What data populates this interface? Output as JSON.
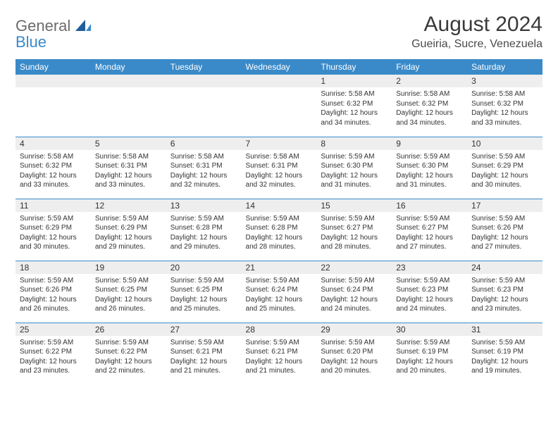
{
  "logo": {
    "word1": "General",
    "word2": "Blue"
  },
  "header": {
    "title": "August 2024",
    "location": "Gueiria, Sucre, Venezuela"
  },
  "dayHeaders": [
    "Sunday",
    "Monday",
    "Tuesday",
    "Wednesday",
    "Thursday",
    "Friday",
    "Saturday"
  ],
  "styling": {
    "accent": "#3a8ac9",
    "dayNumBg": "#eeeeee",
    "text": "#333333",
    "headerText": "#ffffff",
    "pageBg": "#ffffff",
    "titleFontSize": 30,
    "locationFontSize": 16,
    "dayHeaderFontSize": 12,
    "dayNumFontSize": 12,
    "bodyFontSize": 10
  },
  "weeks": [
    [
      {
        "n": "",
        "lines": []
      },
      {
        "n": "",
        "lines": []
      },
      {
        "n": "",
        "lines": []
      },
      {
        "n": "",
        "lines": []
      },
      {
        "n": "1",
        "lines": [
          "Sunrise: 5:58 AM",
          "Sunset: 6:32 PM",
          "Daylight: 12 hours and 34 minutes."
        ]
      },
      {
        "n": "2",
        "lines": [
          "Sunrise: 5:58 AM",
          "Sunset: 6:32 PM",
          "Daylight: 12 hours and 34 minutes."
        ]
      },
      {
        "n": "3",
        "lines": [
          "Sunrise: 5:58 AM",
          "Sunset: 6:32 PM",
          "Daylight: 12 hours and 33 minutes."
        ]
      }
    ],
    [
      {
        "n": "4",
        "lines": [
          "Sunrise: 5:58 AM",
          "Sunset: 6:32 PM",
          "Daylight: 12 hours and 33 minutes."
        ]
      },
      {
        "n": "5",
        "lines": [
          "Sunrise: 5:58 AM",
          "Sunset: 6:31 PM",
          "Daylight: 12 hours and 33 minutes."
        ]
      },
      {
        "n": "6",
        "lines": [
          "Sunrise: 5:58 AM",
          "Sunset: 6:31 PM",
          "Daylight: 12 hours and 32 minutes."
        ]
      },
      {
        "n": "7",
        "lines": [
          "Sunrise: 5:58 AM",
          "Sunset: 6:31 PM",
          "Daylight: 12 hours and 32 minutes."
        ]
      },
      {
        "n": "8",
        "lines": [
          "Sunrise: 5:59 AM",
          "Sunset: 6:30 PM",
          "Daylight: 12 hours and 31 minutes."
        ]
      },
      {
        "n": "9",
        "lines": [
          "Sunrise: 5:59 AM",
          "Sunset: 6:30 PM",
          "Daylight: 12 hours and 31 minutes."
        ]
      },
      {
        "n": "10",
        "lines": [
          "Sunrise: 5:59 AM",
          "Sunset: 6:29 PM",
          "Daylight: 12 hours and 30 minutes."
        ]
      }
    ],
    [
      {
        "n": "11",
        "lines": [
          "Sunrise: 5:59 AM",
          "Sunset: 6:29 PM",
          "Daylight: 12 hours and 30 minutes."
        ]
      },
      {
        "n": "12",
        "lines": [
          "Sunrise: 5:59 AM",
          "Sunset: 6:29 PM",
          "Daylight: 12 hours and 29 minutes."
        ]
      },
      {
        "n": "13",
        "lines": [
          "Sunrise: 5:59 AM",
          "Sunset: 6:28 PM",
          "Daylight: 12 hours and 29 minutes."
        ]
      },
      {
        "n": "14",
        "lines": [
          "Sunrise: 5:59 AM",
          "Sunset: 6:28 PM",
          "Daylight: 12 hours and 28 minutes."
        ]
      },
      {
        "n": "15",
        "lines": [
          "Sunrise: 5:59 AM",
          "Sunset: 6:27 PM",
          "Daylight: 12 hours and 28 minutes."
        ]
      },
      {
        "n": "16",
        "lines": [
          "Sunrise: 5:59 AM",
          "Sunset: 6:27 PM",
          "Daylight: 12 hours and 27 minutes."
        ]
      },
      {
        "n": "17",
        "lines": [
          "Sunrise: 5:59 AM",
          "Sunset: 6:26 PM",
          "Daylight: 12 hours and 27 minutes."
        ]
      }
    ],
    [
      {
        "n": "18",
        "lines": [
          "Sunrise: 5:59 AM",
          "Sunset: 6:26 PM",
          "Daylight: 12 hours and 26 minutes."
        ]
      },
      {
        "n": "19",
        "lines": [
          "Sunrise: 5:59 AM",
          "Sunset: 6:25 PM",
          "Daylight: 12 hours and 26 minutes."
        ]
      },
      {
        "n": "20",
        "lines": [
          "Sunrise: 5:59 AM",
          "Sunset: 6:25 PM",
          "Daylight: 12 hours and 25 minutes."
        ]
      },
      {
        "n": "21",
        "lines": [
          "Sunrise: 5:59 AM",
          "Sunset: 6:24 PM",
          "Daylight: 12 hours and 25 minutes."
        ]
      },
      {
        "n": "22",
        "lines": [
          "Sunrise: 5:59 AM",
          "Sunset: 6:24 PM",
          "Daylight: 12 hours and 24 minutes."
        ]
      },
      {
        "n": "23",
        "lines": [
          "Sunrise: 5:59 AM",
          "Sunset: 6:23 PM",
          "Daylight: 12 hours and 24 minutes."
        ]
      },
      {
        "n": "24",
        "lines": [
          "Sunrise: 5:59 AM",
          "Sunset: 6:23 PM",
          "Daylight: 12 hours and 23 minutes."
        ]
      }
    ],
    [
      {
        "n": "25",
        "lines": [
          "Sunrise: 5:59 AM",
          "Sunset: 6:22 PM",
          "Daylight: 12 hours and 23 minutes."
        ]
      },
      {
        "n": "26",
        "lines": [
          "Sunrise: 5:59 AM",
          "Sunset: 6:22 PM",
          "Daylight: 12 hours and 22 minutes."
        ]
      },
      {
        "n": "27",
        "lines": [
          "Sunrise: 5:59 AM",
          "Sunset: 6:21 PM",
          "Daylight: 12 hours and 21 minutes."
        ]
      },
      {
        "n": "28",
        "lines": [
          "Sunrise: 5:59 AM",
          "Sunset: 6:21 PM",
          "Daylight: 12 hours and 21 minutes."
        ]
      },
      {
        "n": "29",
        "lines": [
          "Sunrise: 5:59 AM",
          "Sunset: 6:20 PM",
          "Daylight: 12 hours and 20 minutes."
        ]
      },
      {
        "n": "30",
        "lines": [
          "Sunrise: 5:59 AM",
          "Sunset: 6:19 PM",
          "Daylight: 12 hours and 20 minutes."
        ]
      },
      {
        "n": "31",
        "lines": [
          "Sunrise: 5:59 AM",
          "Sunset: 6:19 PM",
          "Daylight: 12 hours and 19 minutes."
        ]
      }
    ]
  ]
}
